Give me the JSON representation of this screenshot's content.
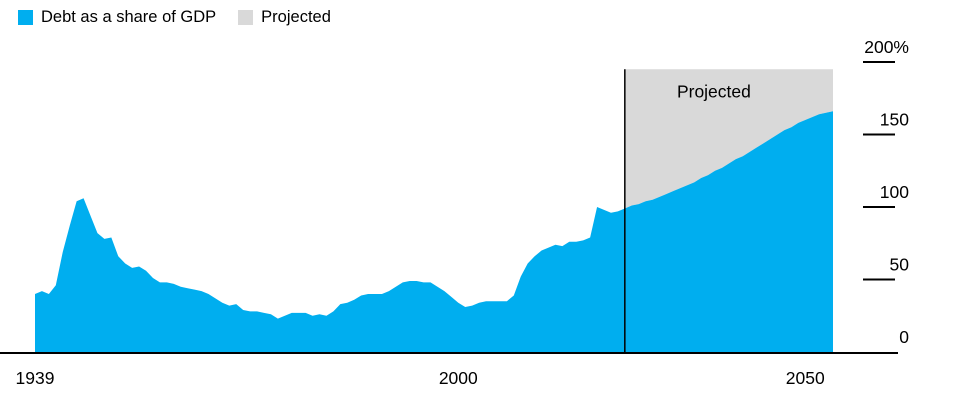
{
  "legend": {
    "items": [
      {
        "label": "Debt as a share of GDP"
      },
      {
        "label": "Projected"
      }
    ]
  },
  "colors": {
    "area": "#00AEEF",
    "projected": "#D9D9D9",
    "axis": "#000000",
    "text": "#000000",
    "background": "#FFFFFF"
  },
  "chart_data": {
    "type": "area",
    "title": "",
    "xlabel": "",
    "ylabel": "",
    "unit": "% of GDP",
    "grid": false,
    "legend_position": "top-left",
    "xlim": [
      1939,
      2054
    ],
    "ylim": [
      0,
      200
    ],
    "x_axis": {
      "ticks": [
        {
          "year": 1939,
          "label": "1939"
        },
        {
          "year": 2000,
          "label": "2000"
        },
        {
          "year": 2050,
          "label": "2050"
        }
      ]
    },
    "y_axis": {
      "ticks": [
        {
          "value": 0,
          "label": "0"
        },
        {
          "value": 50,
          "label": "50"
        },
        {
          "value": 100,
          "label": "100"
        },
        {
          "value": 150,
          "label": "150"
        },
        {
          "value": 200,
          "label": "200%"
        }
      ]
    },
    "projection": {
      "start_year": 2024,
      "end_year": 2054,
      "band_top": 195,
      "label": "Projected"
    },
    "series": [
      {
        "name": "Debt as a share of GDP",
        "points": [
          [
            1939,
            40
          ],
          [
            1940,
            42
          ],
          [
            1941,
            40
          ],
          [
            1942,
            46
          ],
          [
            1943,
            69
          ],
          [
            1944,
            87
          ],
          [
            1945,
            104
          ],
          [
            1946,
            106
          ],
          [
            1947,
            94
          ],
          [
            1948,
            82
          ],
          [
            1949,
            78
          ],
          [
            1950,
            79
          ],
          [
            1951,
            66
          ],
          [
            1952,
            61
          ],
          [
            1953,
            58
          ],
          [
            1954,
            59
          ],
          [
            1955,
            56
          ],
          [
            1956,
            51
          ],
          [
            1957,
            48
          ],
          [
            1958,
            48
          ],
          [
            1959,
            47
          ],
          [
            1960,
            45
          ],
          [
            1961,
            44
          ],
          [
            1962,
            43
          ],
          [
            1963,
            42
          ],
          [
            1964,
            40
          ],
          [
            1965,
            37
          ],
          [
            1966,
            34
          ],
          [
            1967,
            32
          ],
          [
            1968,
            33
          ],
          [
            1969,
            29
          ],
          [
            1970,
            28
          ],
          [
            1971,
            28
          ],
          [
            1972,
            27
          ],
          [
            1973,
            26
          ],
          [
            1974,
            23
          ],
          [
            1975,
            25
          ],
          [
            1976,
            27
          ],
          [
            1977,
            27
          ],
          [
            1978,
            27
          ],
          [
            1979,
            25
          ],
          [
            1980,
            26
          ],
          [
            1981,
            25
          ],
          [
            1982,
            28
          ],
          [
            1983,
            33
          ],
          [
            1984,
            34
          ],
          [
            1985,
            36
          ],
          [
            1986,
            39
          ],
          [
            1987,
            40
          ],
          [
            1988,
            40
          ],
          [
            1989,
            40
          ],
          [
            1990,
            42
          ],
          [
            1991,
            45
          ],
          [
            1992,
            48
          ],
          [
            1993,
            49
          ],
          [
            1994,
            49
          ],
          [
            1995,
            48
          ],
          [
            1996,
            48
          ],
          [
            1997,
            45
          ],
          [
            1998,
            42
          ],
          [
            1999,
            38
          ],
          [
            2000,
            34
          ],
          [
            2001,
            31
          ],
          [
            2002,
            32
          ],
          [
            2003,
            34
          ],
          [
            2004,
            35
          ],
          [
            2005,
            35
          ],
          [
            2006,
            35
          ],
          [
            2007,
            35
          ],
          [
            2008,
            39
          ],
          [
            2009,
            52
          ],
          [
            2010,
            61
          ],
          [
            2011,
            66
          ],
          [
            2012,
            70
          ],
          [
            2013,
            72
          ],
          [
            2014,
            74
          ],
          [
            2015,
            73
          ],
          [
            2016,
            76
          ],
          [
            2017,
            76
          ],
          [
            2018,
            77
          ],
          [
            2019,
            79
          ],
          [
            2020,
            100
          ],
          [
            2021,
            98
          ],
          [
            2022,
            96
          ],
          [
            2023,
            97
          ],
          [
            2024,
            99
          ],
          [
            2025,
            101
          ],
          [
            2026,
            102
          ],
          [
            2027,
            104
          ],
          [
            2028,
            105
          ],
          [
            2029,
            107
          ],
          [
            2030,
            109
          ],
          [
            2031,
            111
          ],
          [
            2032,
            113
          ],
          [
            2033,
            115
          ],
          [
            2034,
            117
          ],
          [
            2035,
            120
          ],
          [
            2036,
            122
          ],
          [
            2037,
            125
          ],
          [
            2038,
            127
          ],
          [
            2039,
            130
          ],
          [
            2040,
            133
          ],
          [
            2041,
            135
          ],
          [
            2042,
            138
          ],
          [
            2043,
            141
          ],
          [
            2044,
            144
          ],
          [
            2045,
            147
          ],
          [
            2046,
            150
          ],
          [
            2047,
            153
          ],
          [
            2048,
            155
          ],
          [
            2049,
            158
          ],
          [
            2050,
            160
          ],
          [
            2051,
            162
          ],
          [
            2052,
            164
          ],
          [
            2053,
            165
          ],
          [
            2054,
            166
          ]
        ]
      }
    ]
  }
}
